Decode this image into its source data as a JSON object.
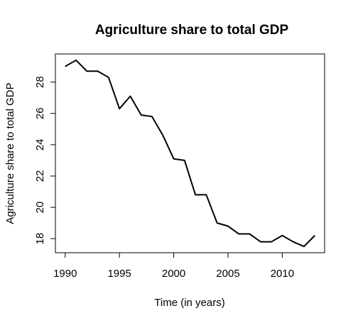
{
  "chart_data": {
    "type": "line",
    "title": "Agriculture share to total GDP",
    "xlabel": "Time (in years)",
    "ylabel": "Agriculture share to total GDP",
    "x": [
      1990,
      1991,
      1992,
      1993,
      1994,
      1995,
      1996,
      1997,
      1998,
      1999,
      2000,
      2001,
      2002,
      2003,
      2004,
      2005,
      2006,
      2007,
      2008,
      2009,
      2010,
      2011,
      2012,
      2013
    ],
    "series": [
      {
        "values": [
          29.0,
          29.4,
          28.7,
          28.7,
          28.3,
          26.3,
          27.1,
          25.9,
          25.8,
          24.6,
          23.1,
          23.0,
          20.8,
          20.8,
          19.0,
          18.8,
          18.3,
          18.3,
          17.8,
          17.8,
          18.2,
          17.8,
          17.5,
          18.2
        ]
      }
    ],
    "xlim": [
      1989.1,
      2013.9
    ],
    "ylim": [
      17.1,
      29.8
    ],
    "x_ticks": [
      "1990",
      "1995",
      "2000",
      "2005",
      "2010"
    ],
    "y_ticks": [
      "18",
      "20",
      "22",
      "24",
      "26",
      "28"
    ],
    "grid": false,
    "line_color": "#000000"
  }
}
